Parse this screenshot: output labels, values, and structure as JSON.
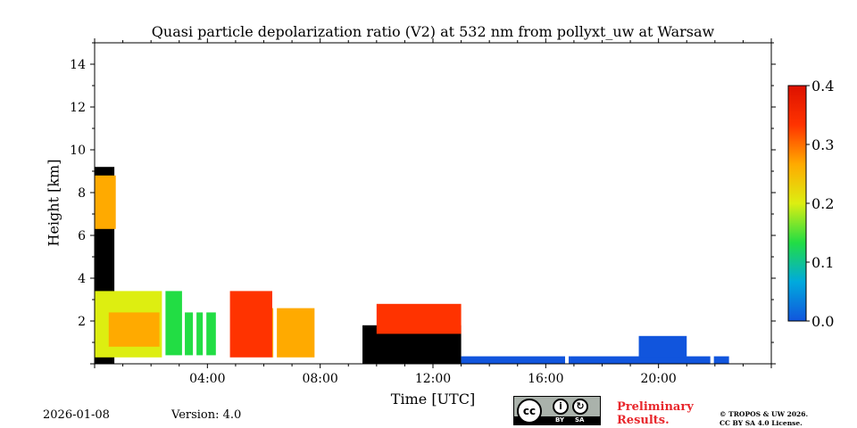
{
  "chart_data": {
    "type": "heatmap",
    "title": "Quasi particle depolarization ratio (V2) at 532 nm from pollyxt_uw at Warsaw",
    "xlabel": "Time [UTC]",
    "ylabel": "Height [km]",
    "x_range_hours": [
      0,
      24
    ],
    "y_range_km": [
      0,
      15
    ],
    "x_ticks": [
      {
        "value": 4,
        "label": "04:00"
      },
      {
        "value": 8,
        "label": "08:00"
      },
      {
        "value": 12,
        "label": "12:00"
      },
      {
        "value": 16,
        "label": "16:00"
      },
      {
        "value": 20,
        "label": "20:00"
      }
    ],
    "y_ticks": [
      {
        "value": 2,
        "label": "2"
      },
      {
        "value": 4,
        "label": "4"
      },
      {
        "value": 6,
        "label": "6"
      },
      {
        "value": 8,
        "label": "8"
      },
      {
        "value": 10,
        "label": "10"
      },
      {
        "value": 12,
        "label": "12"
      },
      {
        "value": 14,
        "label": "14"
      }
    ],
    "colorbar": {
      "range": [
        0.0,
        0.4
      ],
      "ticks": [
        {
          "value": 0.0,
          "label": "0.0"
        },
        {
          "value": 0.1,
          "label": "0.1"
        },
        {
          "value": 0.2,
          "label": "0.2"
        },
        {
          "value": 0.3,
          "label": "0.3"
        },
        {
          "value": 0.4,
          "label": "0.4"
        }
      ],
      "colors": [
        "#1155dd",
        "#00aadd",
        "#22dd44",
        "#ddee11",
        "#ffaa00",
        "#ff3300",
        "#dd1100"
      ]
    },
    "regions": [
      {
        "t0": 0.0,
        "t1": 0.7,
        "h0": 0.0,
        "h1": 9.2,
        "value": "black"
      },
      {
        "t0": 0.0,
        "t1": 0.75,
        "h0": 6.3,
        "h1": 8.8,
        "value": 0.3
      },
      {
        "t0": 0.0,
        "t1": 2.4,
        "h0": 0.3,
        "h1": 3.4,
        "value": 0.17
      },
      {
        "t0": 0.5,
        "t1": 2.3,
        "h0": 0.8,
        "h1": 2.4,
        "value": 0.3
      },
      {
        "t0": 2.5,
        "t1": 3.1,
        "h0": 0.4,
        "h1": 3.4,
        "value": 0.16
      },
      {
        "t0": 3.2,
        "t1": 4.3,
        "h0": 0.4,
        "h1": 2.4,
        "value": 0.15
      },
      {
        "t0": 4.8,
        "t1": 6.3,
        "h0": 0.3,
        "h1": 3.4,
        "value": 0.34
      },
      {
        "t0": 6.3,
        "t1": 7.8,
        "h0": 0.3,
        "h1": 2.6,
        "value": 0.28
      },
      {
        "t0": 9.5,
        "t1": 13.0,
        "h0": 0.0,
        "h1": 1.8,
        "value": "black"
      },
      {
        "t0": 10.0,
        "t1": 13.0,
        "h0": 1.4,
        "h1": 2.8,
        "value": 0.32
      },
      {
        "t0": 13.0,
        "t1": 22.5,
        "h0": 0.0,
        "h1": 0.35,
        "value": 0.02
      },
      {
        "t0": 19.3,
        "t1": 21.0,
        "h0": 0.3,
        "h1": 1.3,
        "value": 0.03
      }
    ],
    "gaps_hours": [
      2.45,
      3.55,
      3.9,
      4.65,
      6.4,
      16.75,
      21.9
    ],
    "legend": "colorbar right"
  },
  "footer": {
    "date": "2026-01-08",
    "version": "Version: 4.0",
    "preliminary_line1": "Preliminary",
    "preliminary_line2": "Results.",
    "copyright_line1": "© TROPOS & UW 2026.",
    "copyright_line2": "CC BY SA 4.0 License."
  },
  "license_badge": {
    "main": "cc",
    "by_symbol": "i",
    "sa_symbol": "↻",
    "by_label": "BY",
    "sa_label": "SA"
  }
}
